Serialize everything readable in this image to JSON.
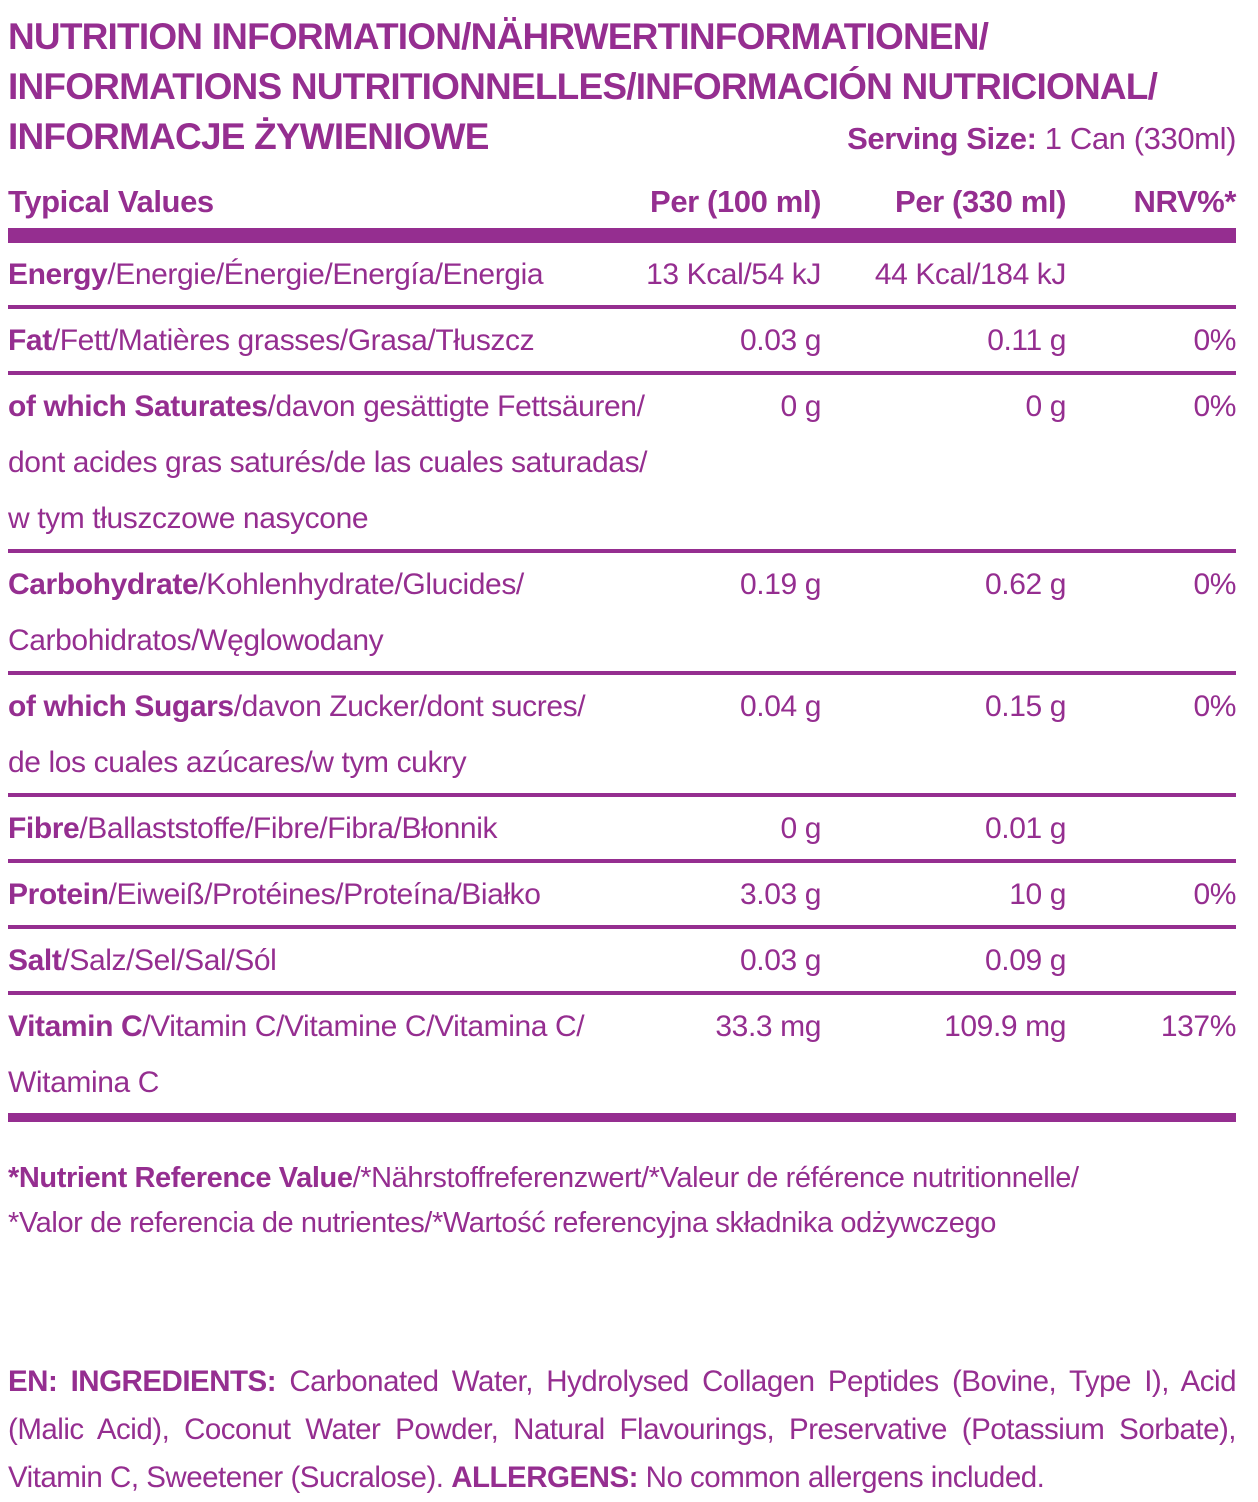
{
  "colors": {
    "primary": "#952e90",
    "background": "#ffffff"
  },
  "header": {
    "title_line1": "NUTRITION INFORMATION/NÄHRWERTINFORMATIONEN/",
    "title_line2": "INFORMATIONS NUTRITIONNELLES/INFORMACIÓN NUTRICIONAL/",
    "title_line3": "INFORMACJE ŻYWIENIOWE",
    "serving_size_label": "Serving Size:",
    "serving_size_value": " 1 Can (330ml)"
  },
  "table": {
    "header": {
      "col1": "Typical Values",
      "col2": "Per (100 ml)",
      "col3": "Per (330 ml)",
      "col4": "NRV%*"
    },
    "rows": [
      {
        "bold": "Energy",
        "rest": "/Energie/Énergie/Energía/Energia",
        "per100": "13 Kcal/54 kJ",
        "per330": "44 Kcal/184 kJ",
        "nrv": ""
      },
      {
        "bold": "Fat",
        "rest": "/Fett/Matières grasses/Grasa/Tłuszcz",
        "per100": "0.03 g",
        "per330": "0.11 g",
        "nrv": "0%"
      },
      {
        "bold": "of which Saturates",
        "rest": "/davon gesättigte Fettsäuren/",
        "line2": "dont acides gras saturés/de las cuales saturadas/",
        "line3": "w tym tłuszczowe nasycone",
        "per100": "0 g",
        "per330": "0 g",
        "nrv": "0%"
      },
      {
        "bold": "Carbohydrate",
        "rest": "/Kohlenhydrate/Glucides/",
        "line2": "Carbohidratos/Węglowodany",
        "per100": "0.19 g",
        "per330": "0.62 g",
        "nrv": "0%"
      },
      {
        "bold": "of which Sugars",
        "rest": "/davon Zucker/dont sucres/",
        "line2": "de los cuales azúcares/w tym cukry",
        "per100": "0.04 g",
        "per330": "0.15 g",
        "nrv": "0%"
      },
      {
        "bold": "Fibre",
        "rest": "/Ballaststoffe/Fibre/Fibra/Błonnik",
        "per100": "0 g",
        "per330": "0.01 g",
        "nrv": ""
      },
      {
        "bold": "Protein",
        "rest": "/Eiweiß/Protéines/Proteína/Białko",
        "per100": "3.03 g",
        "per330": "10 g",
        "nrv": "0%"
      },
      {
        "bold": "Salt",
        "rest": "/Salz/Sel/Sal/Sól",
        "per100": "0.03 g",
        "per330": "0.09 g",
        "nrv": ""
      },
      {
        "bold": "Vitamin C",
        "rest": "/Vitamin C/Vitamine C/Vitamina C/",
        "line2": "Witamina C",
        "per100": "33.3 mg",
        "per330": "109.9 mg",
        "nrv": "137%"
      }
    ]
  },
  "footnote": {
    "bold": "*Nutrient Reference Value",
    "line1_rest": "/*Nährstoffreferenzwert/*Valeur de référence nutritionnelle/",
    "line2": "*Valor de referencia de nutrientes/*Wartość referencyjna składnika odżywczego"
  },
  "ingredients": {
    "lang_label": "EN: INGREDIENTS:",
    "text": " Carbonated Water, Hydrolysed Collagen Peptides (Bovine, Type I), Acid (Malic Acid), Coconut Water Powder, Natural Flavourings, Preservative (Potassium Sorbate), Vitamin C, Sweetener (Sucralose). ",
    "allergens_label": "ALLERGENS:",
    "allergens_text": " No common allergens included."
  }
}
